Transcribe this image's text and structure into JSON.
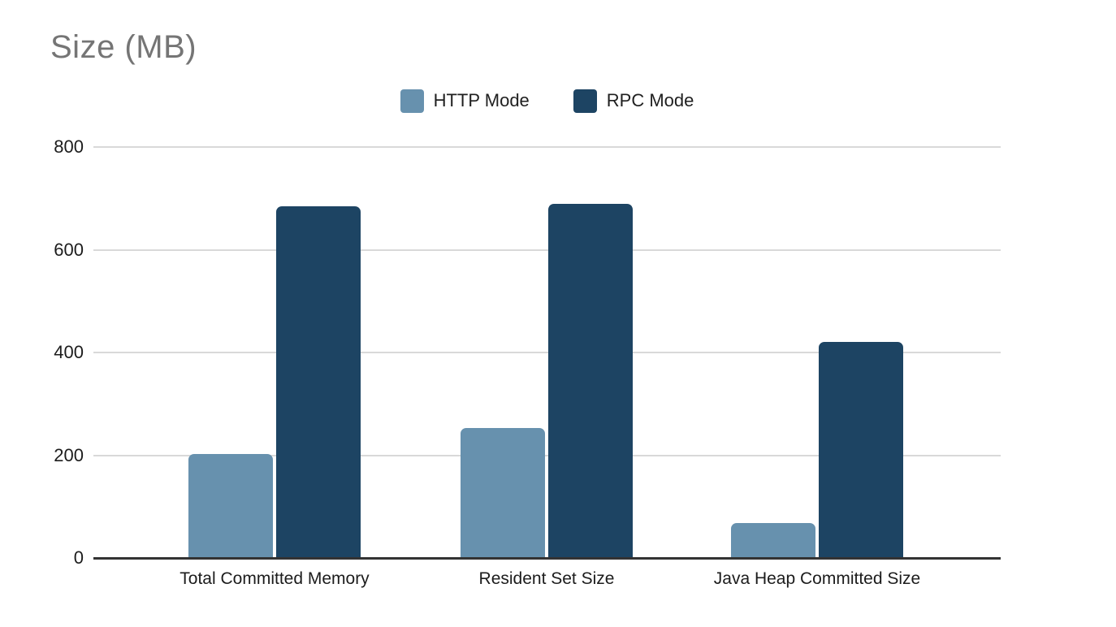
{
  "title": "Size (MB)",
  "colors": {
    "http_mode": "#6791ae",
    "rpc_mode": "#1d4463",
    "title_text": "#757575",
    "gridline": "#d9d9d9",
    "axis": "#333333",
    "label_text": "#1c1c1c",
    "background": "#ffffff"
  },
  "legend": {
    "items": [
      {
        "label": "HTTP Mode",
        "color": "#6791ae"
      },
      {
        "label": "RPC Mode",
        "color": "#1d4463"
      }
    ]
  },
  "y_axis": {
    "tick_labels": [
      "0",
      "200",
      "400",
      "600",
      "800"
    ]
  },
  "chart_data": {
    "type": "bar",
    "title": "Size (MB)",
    "categories": [
      "Total Committed Memory",
      "Resident Set Size",
      "Java Heap Committed Size"
    ],
    "series": [
      {
        "name": "HTTP Mode",
        "color": "#6791ae",
        "values": [
          202,
          253,
          68
        ]
      },
      {
        "name": "RPC Mode",
        "color": "#1d4463",
        "values": [
          685,
          690,
          420
        ]
      }
    ],
    "xlabel": "",
    "ylabel": "Size (MB)",
    "ylim": [
      0,
      800
    ],
    "yticks": [
      0,
      200,
      400,
      600,
      800
    ],
    "grid": true,
    "legend_position": "top-center",
    "bar_corner_radius": "rounded-top"
  }
}
